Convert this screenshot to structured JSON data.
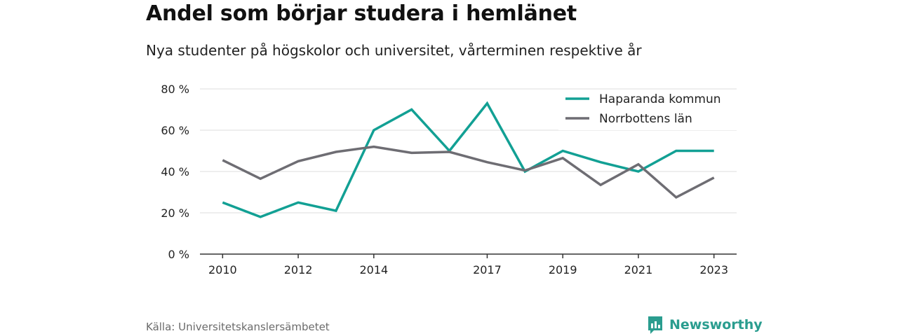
{
  "title": "Andel som börjar studera i hemlänet",
  "subtitle": "Nya studenter på högskolor och universitet, vårterminen respektive år",
  "source": "Källa: Universitetskanslersämbetet",
  "brand": {
    "name": "Newsworthy",
    "icon": "newsworthy-logo-icon",
    "color": "#2a9d8f"
  },
  "chart_data": {
    "type": "line",
    "x": [
      2010,
      2011,
      2012,
      2013,
      2014,
      2015,
      2016,
      2017,
      2018,
      2019,
      2020,
      2021,
      2022,
      2023
    ],
    "x_tick_labels": [
      "2010",
      "2012",
      "2014",
      "2017",
      "2019",
      "2021",
      "2023"
    ],
    "y_tick_labels": [
      "0 %",
      "20 %",
      "40 %",
      "60 %",
      "80 %"
    ],
    "y_ticks": [
      0,
      20,
      40,
      60,
      80
    ],
    "ylim": [
      0,
      80
    ],
    "xlim": [
      2009.4,
      2023.6
    ],
    "grid": true,
    "legend_position": "top-right",
    "series": [
      {
        "name": "Haparanda kommun",
        "color": "#12a094",
        "values": [
          25,
          18,
          25,
          21,
          60,
          70,
          50,
          73,
          40,
          50,
          44.5,
          40,
          50,
          50
        ]
      },
      {
        "name": "Norrbottens län",
        "color": "#6e6d73",
        "values": [
          45.5,
          36.5,
          45,
          49.5,
          52,
          49,
          49.5,
          44.5,
          40.5,
          46.5,
          33.5,
          43.5,
          27.5,
          37
        ]
      }
    ]
  }
}
